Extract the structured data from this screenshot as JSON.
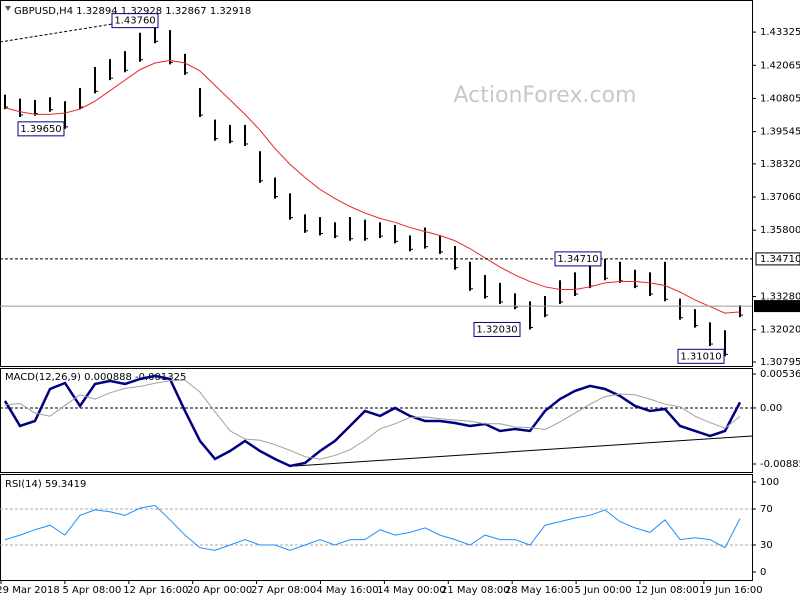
{
  "chart_data": [
    {
      "type": "ohlc",
      "title": "GBPUSD,H4 1.32894 1.32928 1.32867 1.32918",
      "color": "#000000",
      "high": [
        1.4095,
        1.408,
        1.4075,
        1.4085,
        1.407,
        1.412,
        1.42,
        1.423,
        1.426,
        1.433,
        1.4376,
        1.434,
        1.425,
        1.412,
        1.4,
        1.398,
        1.398,
        1.388,
        1.378,
        1.372,
        1.364,
        1.363,
        1.361,
        1.363,
        1.362,
        1.361,
        1.36,
        1.356,
        1.359,
        1.356,
        1.352,
        1.346,
        1.341,
        1.338,
        1.334,
        1.331,
        1.333,
        1.339,
        1.342,
        1.345,
        1.3471,
        1.346,
        1.343,
        1.342,
        1.346,
        1.332,
        1.328,
        1.323,
        1.32,
        1.3295
      ],
      "low": [
        1.404,
        1.401,
        1.4015,
        1.403,
        1.3965,
        1.404,
        1.41,
        1.415,
        1.418,
        1.422,
        1.429,
        1.421,
        1.417,
        1.401,
        1.392,
        1.391,
        1.39,
        1.376,
        1.37,
        1.362,
        1.357,
        1.356,
        1.355,
        1.354,
        1.354,
        1.355,
        1.353,
        1.35,
        1.351,
        1.349,
        1.343,
        1.335,
        1.332,
        1.33,
        1.328,
        1.3203,
        1.325,
        1.33,
        1.333,
        1.336,
        1.339,
        1.338,
        1.336,
        1.333,
        1.331,
        1.324,
        1.321,
        1.314,
        1.3101,
        1.325
      ],
      "series": [
        {
          "color": "#e8262b",
          "values": [
            1.4045,
            1.403,
            1.402,
            1.402,
            1.4025,
            1.404,
            1.407,
            1.411,
            1.415,
            1.419,
            1.4215,
            1.4225,
            1.4215,
            1.4185,
            1.413,
            1.4075,
            1.402,
            1.396,
            1.389,
            1.383,
            1.378,
            1.3735,
            1.37,
            1.367,
            1.3645,
            1.3625,
            1.361,
            1.359,
            1.3575,
            1.356,
            1.354,
            1.351,
            1.3475,
            1.344,
            1.341,
            1.3385,
            1.3365,
            1.3355,
            1.3355,
            1.3365,
            1.338,
            1.3385,
            1.3385,
            1.338,
            1.337,
            1.3345,
            1.3315,
            1.329,
            1.3265,
            1.327
          ]
        }
      ],
      "ylim": [
        1.3068,
        1.4443
      ],
      "yticks": [
        1.43325,
        1.42065,
        1.40805,
        1.39545,
        {
          "value": 1.3832,
          "label": "1.38320"
        },
        {
          "value": 1.3706,
          "label": "1.37060"
        },
        {
          "value": 1.358,
          "label": "1.35800"
        },
        {
          "value": 1.3328,
          "label": "1.33280"
        },
        {
          "value": 1.3202,
          "label": "1.32020"
        },
        1.30795
      ],
      "hline": {
        "value": 1.3471,
        "label": "1.34710"
      },
      "last": 1.32918,
      "annotations": [
        {
          "value": 1.4376,
          "label": "1.43760"
        },
        {
          "value": 1.3965,
          "label": "1.39650"
        },
        {
          "value": 1.3471,
          "label": "1.34710"
        },
        {
          "value": 1.3203,
          "label": "1.32030"
        },
        {
          "value": 1.3101,
          "label": "1.31010"
        }
      ],
      "xtick_labels": [
        "29 Mar 2018",
        "5 Apr 08:00",
        "12 Apr 16:00",
        "20 Apr 00:00",
        "27 Apr 08:00",
        "4 May 16:00",
        "14 May 00:00",
        "21 May 08:00",
        "28 May 16:00",
        "5 Jun 00:00",
        "12 Jun 08:00",
        "19 Jun 16:00"
      ]
    },
    {
      "type": "macd",
      "title": "MACD(12,26,9) 0.000888 -0.001325",
      "series": [
        {
          "color": "#000080",
          "values": [
            0.00111,
            -0.00284,
            -0.00205,
            0.003,
            0.00395,
            0.00032,
            0.00379,
            0.00427,
            0.00379,
            0.00458,
            0.00506,
            0.00458,
            -0.00047,
            -0.00521,
            -0.00806,
            -0.0068,
            -0.00521,
            -0.0068,
            -0.00806,
            -0.00917,
            -0.00869,
            -0.0068,
            -0.00521,
            -0.00284,
            -0.00047,
            -0.00126,
            0,
            -0.00126,
            -0.00205,
            -0.00205,
            -0.00237,
            -0.00284,
            -0.00253,
            -0.00363,
            -0.00332,
            -0.00363,
            -0.00047,
            0.00142,
            0.00269,
            0.00348,
            0.003,
            0.0019,
            0.00032,
            -0.00047,
            -0.00016,
            -0.00284,
            -0.00363,
            -0.00442,
            -0.00363,
            0.000888
          ]
        },
        {
          "color": "#a0a0a0",
          "values": [
            0.0005,
            0.0007,
            -0.0008,
            -0.0013,
            0.0004,
            0.0021,
            0.0014,
            0.0024,
            0.0031,
            0.0034,
            0.0039,
            0.0043,
            0.0044,
            0.0025,
            -0.0006,
            -0.0036,
            -0.0049,
            -0.0051,
            -0.0058,
            -0.0067,
            -0.0077,
            -0.0081,
            -0.0075,
            -0.0066,
            -0.0051,
            -0.0033,
            -0.0025,
            -0.0015,
            -0.0014,
            -0.0017,
            -0.0019,
            -0.0021,
            -0.0025,
            -0.0025,
            -0.003,
            -0.0031,
            -0.0034,
            -0.0022,
            -0.0008,
            0.0006,
            0.0018,
            0.0022,
            0.0021,
            0.0014,
            0.0006,
            0.0002,
            -0.0013,
            -0.0023,
            -0.0032,
            -0.001325
          ]
        }
      ],
      "ylim": [
        -0.00996,
        0.00616
      ],
      "yticks": [
        0.005368,
        {
          "value": 0,
          "label": "0.00"
        },
        -0.008855
      ]
    },
    {
      "type": "rsi",
      "title": "RSI(14) 59.3419",
      "series": [
        {
          "color": "#1e90ff",
          "values": [
            36,
            41,
            47,
            52,
            41,
            63,
            69,
            67,
            63,
            71,
            74,
            58,
            41,
            27,
            24,
            30,
            36,
            30,
            30,
            24,
            30,
            36,
            30,
            36,
            36,
            47,
            41,
            44,
            49,
            41,
            36,
            30,
            41,
            36,
            36,
            30,
            52,
            56,
            60,
            63,
            69,
            56,
            49,
            44,
            58,
            36,
            38,
            36,
            27,
            59.3419
          ]
        }
      ],
      "ylim": [
        -8.9,
        106.7
      ],
      "yticks": [
        100,
        70,
        30,
        0
      ],
      "levels": [
        70,
        30
      ]
    }
  ],
  "watermark": "ActionForex.com"
}
